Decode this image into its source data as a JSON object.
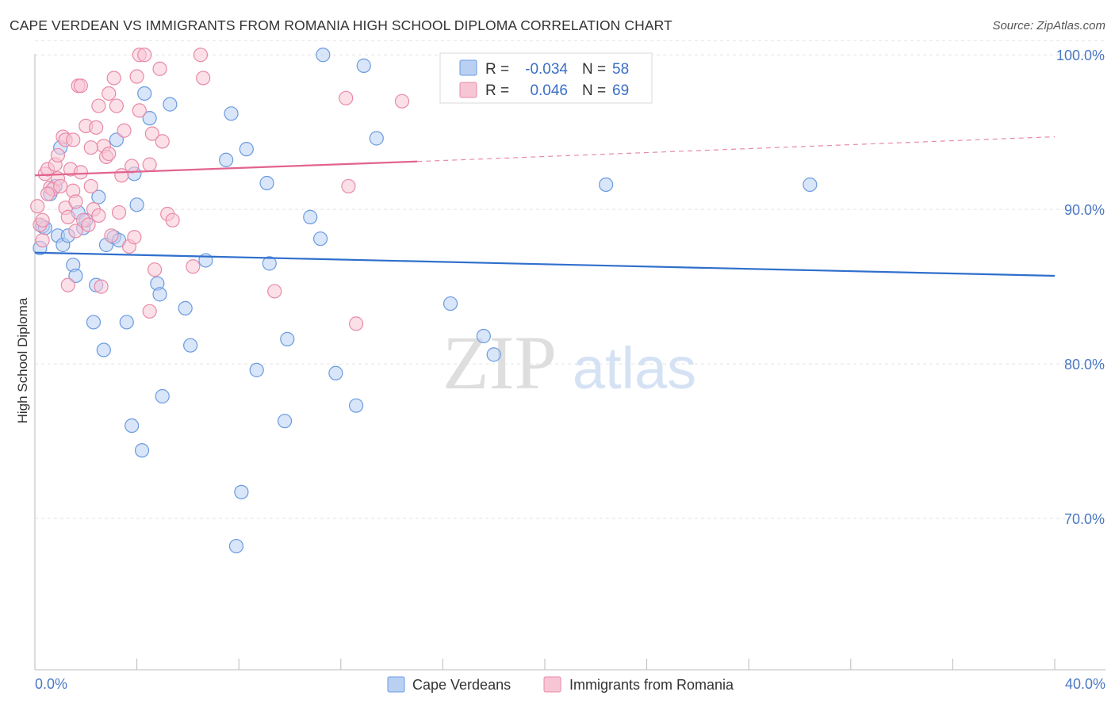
{
  "chart_data": {
    "type": "scatter",
    "title": "CAPE VERDEAN VS IMMIGRANTS FROM ROMANIA HIGH SCHOOL DIPLOMA CORRELATION CHART",
    "source": "Source: ZipAtlas.com",
    "watermark": {
      "zip": "ZIP",
      "atlas": "atlas"
    },
    "xlabel": "",
    "ylabel": "High School Diploma",
    "xlim": [
      0,
      40
    ],
    "ylim": [
      60.2,
      101.5
    ],
    "x_tick_labels": {
      "min": "0.0%",
      "max": "40.0%"
    },
    "y_ticks": [
      {
        "value": 100,
        "label": "100.0%"
      },
      {
        "value": 90,
        "label": "90.0%"
      },
      {
        "value": 80,
        "label": "80.0%"
      },
      {
        "value": 70,
        "label": "70.0%"
      }
    ],
    "grid": true,
    "legend": {
      "r_label": "R =",
      "n_label": "N =",
      "rows": [
        {
          "r": "-0.034",
          "n": "58"
        },
        {
          "r": "0.046",
          "n": "69"
        }
      ]
    },
    "series": [
      {
        "name": "Cape Verdeans",
        "color": "#6a9be0",
        "fill": "#b9d0f3",
        "trend": {
          "x": [
            0,
            40
          ],
          "y": [
            87.2,
            85.7
          ]
        },
        "points": [
          [
            0.2,
            87.5
          ],
          [
            0.3,
            88.9
          ],
          [
            0.4,
            88.8
          ],
          [
            0.6,
            91.0
          ],
          [
            0.8,
            91.5
          ],
          [
            0.9,
            88.3
          ],
          [
            1.0,
            94.0
          ],
          [
            1.1,
            87.7
          ],
          [
            1.3,
            88.3
          ],
          [
            1.5,
            86.4
          ],
          [
            1.6,
            85.7
          ],
          [
            1.7,
            89.8
          ],
          [
            1.9,
            88.8
          ],
          [
            2.0,
            89.3
          ],
          [
            2.3,
            82.7
          ],
          [
            2.4,
            85.1
          ],
          [
            2.5,
            90.8
          ],
          [
            2.7,
            80.9
          ],
          [
            2.8,
            87.7
          ],
          [
            3.1,
            88.2
          ],
          [
            3.2,
            94.5
          ],
          [
            3.3,
            88.0
          ],
          [
            3.6,
            82.7
          ],
          [
            3.8,
            76.0
          ],
          [
            3.9,
            92.3
          ],
          [
            4.0,
            90.3
          ],
          [
            4.2,
            74.4
          ],
          [
            4.3,
            97.5
          ],
          [
            4.5,
            95.9
          ],
          [
            4.8,
            85.2
          ],
          [
            4.9,
            84.5
          ],
          [
            5.0,
            77.9
          ],
          [
            5.3,
            96.8
          ],
          [
            5.9,
            83.6
          ],
          [
            6.1,
            81.2
          ],
          [
            6.7,
            86.7
          ],
          [
            7.5,
            93.2
          ],
          [
            7.7,
            96.2
          ],
          [
            7.9,
            68.2
          ],
          [
            8.1,
            71.7
          ],
          [
            8.3,
            93.9
          ],
          [
            8.7,
            79.6
          ],
          [
            9.1,
            91.7
          ],
          [
            9.2,
            86.5
          ],
          [
            9.8,
            76.3
          ],
          [
            9.9,
            81.6
          ],
          [
            10.8,
            89.5
          ],
          [
            11.2,
            88.1
          ],
          [
            11.3,
            100.0
          ],
          [
            11.8,
            79.4
          ],
          [
            12.6,
            77.3
          ],
          [
            12.9,
            99.3
          ],
          [
            13.4,
            94.6
          ],
          [
            16.3,
            83.9
          ],
          [
            17.6,
            81.8
          ],
          [
            18.0,
            80.6
          ],
          [
            22.4,
            91.6
          ],
          [
            30.4,
            91.6
          ]
        ]
      },
      {
        "name": "Immigrants from Romania",
        "color": "#e88aa8",
        "fill": "#f7c6d5",
        "trend": {
          "x": [
            0,
            15
          ],
          "y": [
            92.2,
            93.1
          ]
        },
        "trend_dashed": {
          "x": [
            15,
            40
          ],
          "y": [
            93.1,
            94.7
          ]
        },
        "points": [
          [
            0.1,
            90.2
          ],
          [
            0.2,
            89.0
          ],
          [
            0.3,
            88.0
          ],
          [
            0.4,
            92.3
          ],
          [
            0.5,
            92.6
          ],
          [
            0.6,
            91.4
          ],
          [
            0.7,
            91.3
          ],
          [
            0.8,
            92.9
          ],
          [
            0.9,
            92.0
          ],
          [
            1.0,
            91.5
          ],
          [
            1.1,
            94.7
          ],
          [
            1.2,
            94.5
          ],
          [
            1.2,
            90.1
          ],
          [
            1.3,
            85.1
          ],
          [
            1.4,
            92.6
          ],
          [
            1.5,
            94.5
          ],
          [
            1.5,
            91.2
          ],
          [
            1.6,
            88.6
          ],
          [
            1.7,
            98.0
          ],
          [
            1.8,
            98.0
          ],
          [
            1.8,
            92.4
          ],
          [
            1.9,
            89.3
          ],
          [
            2.0,
            95.4
          ],
          [
            2.1,
            89.0
          ],
          [
            2.2,
            91.5
          ],
          [
            2.3,
            90.0
          ],
          [
            2.4,
            95.3
          ],
          [
            2.5,
            96.7
          ],
          [
            2.5,
            89.6
          ],
          [
            2.6,
            85.0
          ],
          [
            2.7,
            94.1
          ],
          [
            2.8,
            93.4
          ],
          [
            2.9,
            97.5
          ],
          [
            2.9,
            93.6
          ],
          [
            3.0,
            88.3
          ],
          [
            3.1,
            98.5
          ],
          [
            3.2,
            96.7
          ],
          [
            3.4,
            92.2
          ],
          [
            3.5,
            95.1
          ],
          [
            3.7,
            87.6
          ],
          [
            3.8,
            92.8
          ],
          [
            3.9,
            88.2
          ],
          [
            4.0,
            98.6
          ],
          [
            4.1,
            100.0
          ],
          [
            4.3,
            100.0
          ],
          [
            4.5,
            83.4
          ],
          [
            4.5,
            92.9
          ],
          [
            4.6,
            94.9
          ],
          [
            4.7,
            86.1
          ],
          [
            4.9,
            99.1
          ],
          [
            5.0,
            94.4
          ],
          [
            5.2,
            89.7
          ],
          [
            5.4,
            89.3
          ],
          [
            6.2,
            86.3
          ],
          [
            6.5,
            100.0
          ],
          [
            6.6,
            98.5
          ],
          [
            9.4,
            84.7
          ],
          [
            12.2,
            97.2
          ],
          [
            12.3,
            91.5
          ],
          [
            12.6,
            82.6
          ],
          [
            14.4,
            97.0
          ],
          [
            0.3,
            89.3
          ],
          [
            0.5,
            91.0
          ],
          [
            0.9,
            93.5
          ],
          [
            1.3,
            89.5
          ],
          [
            2.2,
            94.0
          ],
          [
            3.3,
            89.8
          ],
          [
            4.1,
            96.4
          ],
          [
            1.6,
            90.5
          ]
        ]
      }
    ]
  },
  "bottom_legend": [
    {
      "label": "Cape Verdeans"
    },
    {
      "label": "Immigrants from Romania"
    }
  ]
}
